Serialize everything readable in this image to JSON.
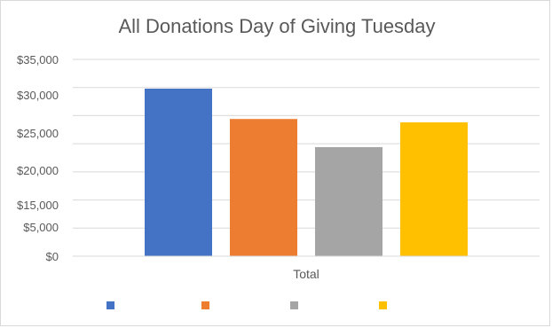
{
  "chart_data": {
    "type": "bar",
    "title": "All Donations Day of Giving Tuesday",
    "xlabel": "",
    "ylabel": "",
    "categories": [
      "Total"
    ],
    "series": [
      {
        "values": [
          29800
        ],
        "color": "#4472C4"
      },
      {
        "values": [
          24400
        ],
        "color": "#ED7D31"
      },
      {
        "values": [
          19400
        ],
        "color": "#A5A5A5"
      },
      {
        "values": [
          23800
        ],
        "color": "#FFC000"
      }
    ],
    "ytick_labels": [
      "$35,000",
      "$30,000",
      "$25,000",
      "$20,000",
      "$15,000",
      "$5,000",
      "$0"
    ],
    "grid": true,
    "legend": "bottom"
  }
}
